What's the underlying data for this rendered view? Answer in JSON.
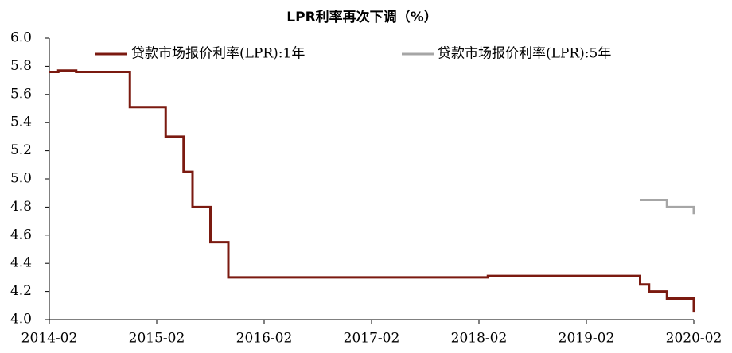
{
  "chart_data": {
    "type": "line",
    "title": "LPR利率再次下调（%）",
    "x": [
      "2014-02",
      "2014-03",
      "2014-05",
      "2014-11",
      "2015-03",
      "2015-05",
      "2015-06",
      "2015-08",
      "2015-10",
      "2018-03",
      "2019-08",
      "2019-09",
      "2019-11",
      "2020-02"
    ],
    "series": [
      {
        "name": "贷款市场报价利率(LPR):1年",
        "color": "#7b1a10",
        "values": [
          5.76,
          5.77,
          5.76,
          5.51,
          5.3,
          5.05,
          4.8,
          4.55,
          4.3,
          4.31,
          4.25,
          4.2,
          4.15,
          4.05
        ]
      },
      {
        "name": "贷款市场报价利率(LPR):5年",
        "color": "#a6a6a6",
        "values": [
          null,
          null,
          null,
          null,
          null,
          null,
          null,
          null,
          null,
          null,
          4.85,
          4.85,
          4.8,
          4.75
        ]
      }
    ],
    "xlim": [
      "2014-02",
      "2020-02"
    ],
    "xticks": [
      "2014-02",
      "2015-02",
      "2016-02",
      "2017-02",
      "2018-02",
      "2019-02",
      "2020-02"
    ],
    "ylim": [
      4,
      6
    ],
    "yticks": [
      {
        "value": 4,
        "label": "4.0"
      },
      4.2,
      4.4,
      4.6,
      4.8,
      {
        "value": 5,
        "label": "5.0"
      },
      5.2,
      5.4,
      5.6,
      5.8,
      {
        "value": 6,
        "label": "6.0"
      }
    ],
    "step": true,
    "legend": "top"
  }
}
